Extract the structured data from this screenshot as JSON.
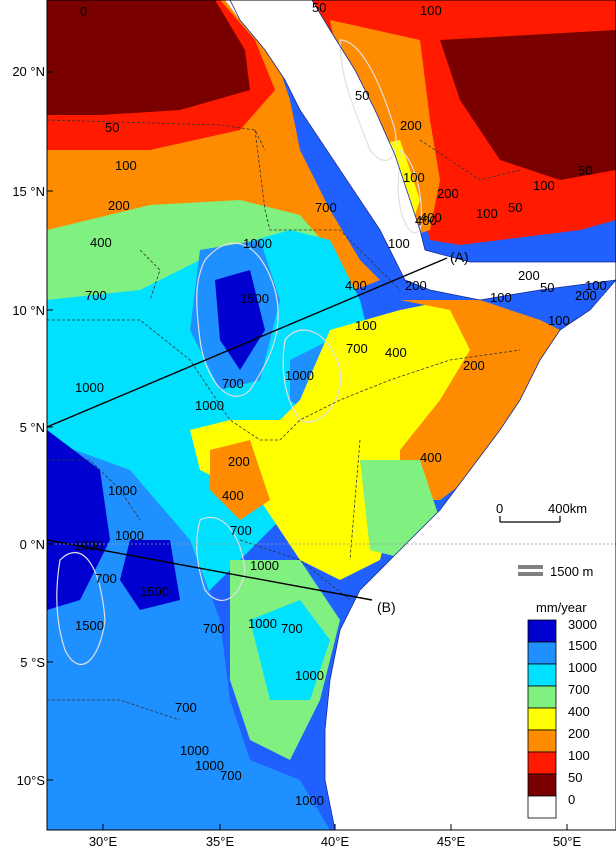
{
  "map": {
    "lat_labels": [
      "20 °N",
      "15 °N",
      "10 °N",
      "5 °N",
      "0 °N",
      "5 °S",
      "10°S"
    ],
    "lon_labels": [
      "30°E",
      "35°E",
      "40°E",
      "45°E",
      "50°E"
    ],
    "profiles": [
      {
        "label": "(A)"
      },
      {
        "label": "(B)"
      }
    ],
    "contour_labels": [
      "0",
      "50",
      "100",
      "200",
      "400",
      "700",
      "1000",
      "1000",
      "700",
      "400",
      "200",
      "100",
      "50",
      "100",
      "200",
      "400",
      "700",
      "1000",
      "1500",
      "1000",
      "700",
      "1000",
      "700",
      "1000",
      "700",
      "1000",
      "1000",
      "1500",
      "1000",
      "1000",
      "1500",
      "1000",
      "700",
      "400",
      "200",
      "400",
      "200",
      "100",
      "50",
      "200",
      "100",
      "400",
      "200",
      "100",
      "50",
      "100",
      "50",
      "100",
      "200",
      "100",
      "400",
      "100",
      "50",
      "700",
      "1000",
      "700",
      "1000",
      "700",
      "1000",
      "1500"
    ],
    "contour_colors": {
      "0": "#ffffff",
      "50": "#7f0000",
      "100": "#ff0000",
      "200": "#ff7f00",
      "400": "#ffff00",
      "700": "#7fff7f",
      "1000": "#00ffff",
      "1500": "#007fff",
      "3000": "#0000ff"
    }
  },
  "scale_bar": {
    "start": "0",
    "end": "400km"
  },
  "elevation_legend": {
    "label": "1500 m"
  },
  "colorbar": {
    "title": "mm/year",
    "ticks": [
      "3000",
      "1500",
      "1000",
      "700",
      "400",
      "200",
      "100",
      "50",
      "0"
    ],
    "colors": [
      "#0000d0",
      "#1e90ff",
      "#00e0ff",
      "#80f080",
      "#ffff00",
      "#ff8c00",
      "#ff1a00",
      "#7a0000",
      "#ffffff"
    ]
  }
}
